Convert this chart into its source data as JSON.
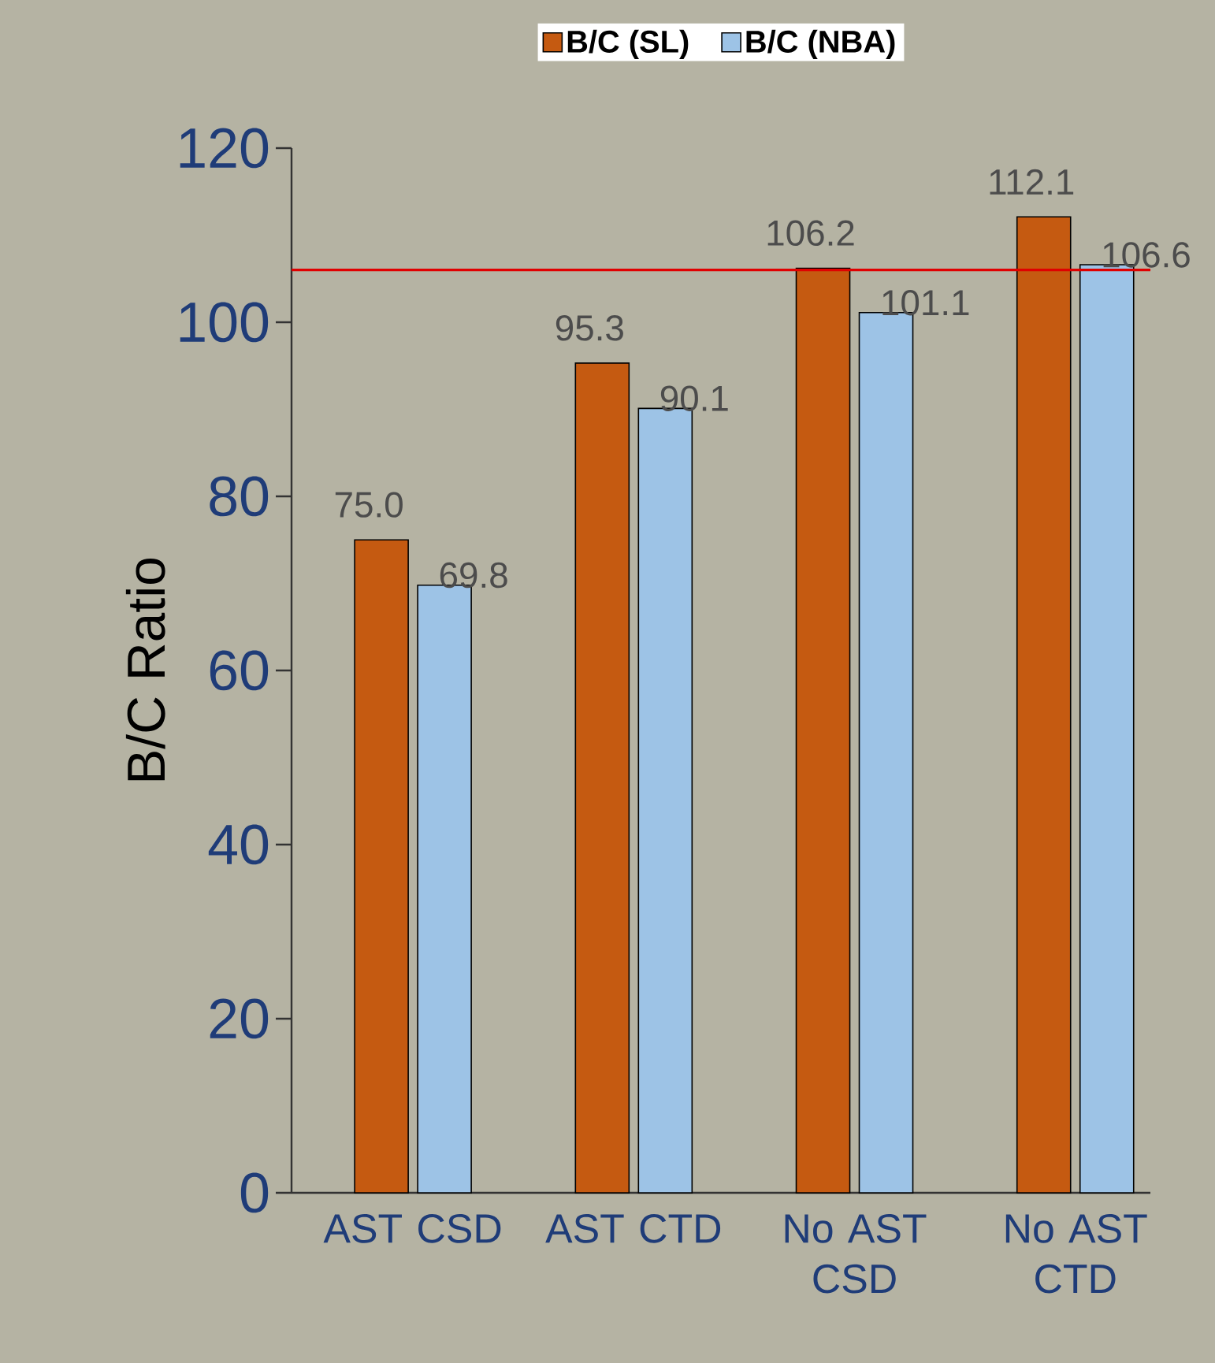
{
  "chart_data": {
    "type": "bar",
    "ylabel": "B/C Ratio",
    "categories": [
      "AST CSD",
      "AST CTD",
      "No AST CSD",
      "No AST CTD"
    ],
    "series": [
      {
        "name": "B/C (SL)",
        "color": "#c55a11",
        "values": [
          75.0,
          95.3,
          106.2,
          112.1
        ],
        "value_labels": [
          "75.0",
          "95.3",
          "106.2",
          "112.1"
        ]
      },
      {
        "name": "B/C (NBA)",
        "color": "#9dc3e6",
        "values": [
          69.8,
          90.1,
          101.1,
          106.6
        ],
        "value_labels": [
          "69.8",
          "90.1",
          "101.1",
          "106.6"
        ]
      }
    ],
    "ylim": [
      0,
      120
    ],
    "yticks": [
      0,
      20,
      40,
      60,
      80,
      100,
      120
    ],
    "ref_lines": [
      {
        "axis": "y",
        "value": 106,
        "color": "#e00000"
      }
    ],
    "legend": "top",
    "grid": false
  }
}
